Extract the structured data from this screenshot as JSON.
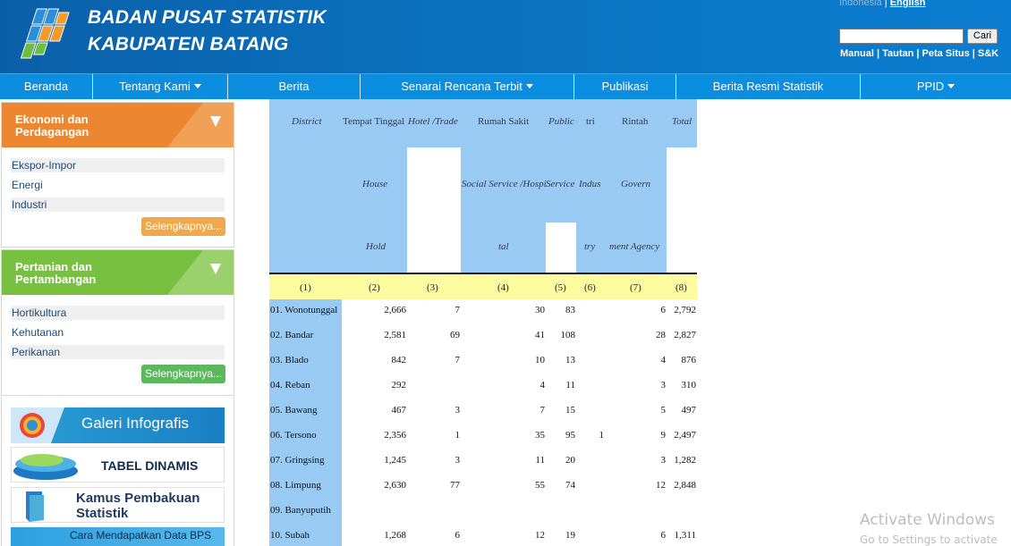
{
  "header": {
    "brand_line1": "BADAN PUSAT STATISTIK",
    "brand_line2": "KABUPATEN BATANG",
    "lang_indonesia": "Indonesia",
    "lang_sep": " | ",
    "lang_english": "English",
    "search_button": "Cari",
    "toplinks": "Manual | Tautan | Peta Situs | S&K"
  },
  "nav": [
    {
      "label": "Beranda",
      "dropdown": false
    },
    {
      "label": "Tentang Kami",
      "dropdown": true
    },
    {
      "label": "Berita",
      "dropdown": false
    },
    {
      "label": "Senarai Rencana Terbit",
      "dropdown": true
    },
    {
      "label": "Publikasi",
      "dropdown": false
    },
    {
      "label": "Berita Resmi Statistik",
      "dropdown": false
    },
    {
      "label": "PPID",
      "dropdown": true
    }
  ],
  "sidebar": {
    "panel1": {
      "title_line1": "Ekonomi dan",
      "title_line2": "Perdagangan",
      "color": "#ee8a2b",
      "items": [
        "Ekspor-Impor",
        "Energi",
        "Industri"
      ],
      "more": "Selengkapnya..."
    },
    "panel2": {
      "title_line1": "Pertanian dan",
      "title_line2": "Pertambangan",
      "color": "#7cc242",
      "items": [
        "Hortikultura",
        "Kehutanan",
        "Perikanan"
      ],
      "more": "Selengkapnya..."
    },
    "banners": {
      "galeri": "Galeri Infografis",
      "tabel": "TABEL DINAMIS",
      "kamus_line1": "Kamus Pembakuan",
      "kamus_line2": "Statistik",
      "cara": "Cara Mendapatkan Data BPS"
    }
  },
  "table": {
    "headers": {
      "district": "District",
      "tempat_tinggal": "Tempat Tinggal",
      "house": "House",
      "hold": "Hold",
      "hotel_trade": "Hotel /Trade",
      "rumah_sakit": "Rumah Sakit",
      "social_service": "Social Service /Hospi",
      "tal": "tal",
      "public": "Public",
      "service": "Service",
      "tri": "tri",
      "indus": "Indus",
      "try": "try",
      "rintah": "Rintah",
      "govern": "Govern",
      "ment_agency": "ment Agency",
      "total": "Total"
    },
    "col_numbers": [
      "(1)",
      "(2)",
      "(3)",
      "(4)",
      "(5)",
      "(6)",
      "(7)",
      "(8)"
    ],
    "rows": [
      {
        "district": "01. Wonotunggal",
        "c2": "2,666",
        "c3": "7",
        "c4": "30",
        "c5": "83",
        "c6": "",
        "c7": "6",
        "c8": "2,792"
      },
      {
        "district": "02. Bandar",
        "c2": "2,581",
        "c3": "69",
        "c4": "41",
        "c5": "108",
        "c6": "",
        "c7": "28",
        "c8": "2,827"
      },
      {
        "district": "03. Blado",
        "c2": "842",
        "c3": "7",
        "c4": "10",
        "c5": "13",
        "c6": "",
        "c7": "4",
        "c8": "876"
      },
      {
        "district": "04. Reban",
        "c2": "292",
        "c3": "",
        "c4": "4",
        "c5": "11",
        "c6": "",
        "c7": "3",
        "c8": "310"
      },
      {
        "district": "05. Bawang",
        "c2": "467",
        "c3": "3",
        "c4": "7",
        "c5": "15",
        "c6": "",
        "c7": "5",
        "c8": "497"
      },
      {
        "district": "06. Tersono",
        "c2": "2,356",
        "c3": "1",
        "c4": "35",
        "c5": "95",
        "c6": "1",
        "c7": "9",
        "c8": "2,497"
      },
      {
        "district": "07. Gringsing",
        "c2": "1,245",
        "c3": "3",
        "c4": "11",
        "c5": "20",
        "c6": "",
        "c7": "3",
        "c8": "1,282"
      },
      {
        "district": "08. Limpung",
        "c2": "2,630",
        "c3": "77",
        "c4": "55",
        "c5": "74",
        "c6": "",
        "c7": "12",
        "c8": "2,848"
      },
      {
        "district": "09. Banyuputih",
        "c2": "",
        "c3": "",
        "c4": "",
        "c5": "",
        "c6": "",
        "c7": "",
        "c8": ""
      },
      {
        "district": "10. Subah",
        "c2": "1,268",
        "c3": "6",
        "c4": "12",
        "c5": "19",
        "c6": "",
        "c7": "6",
        "c8": "1,311"
      }
    ]
  },
  "watermark": {
    "line1": "Activate Windows",
    "line2": "Go to Settings to activate"
  }
}
